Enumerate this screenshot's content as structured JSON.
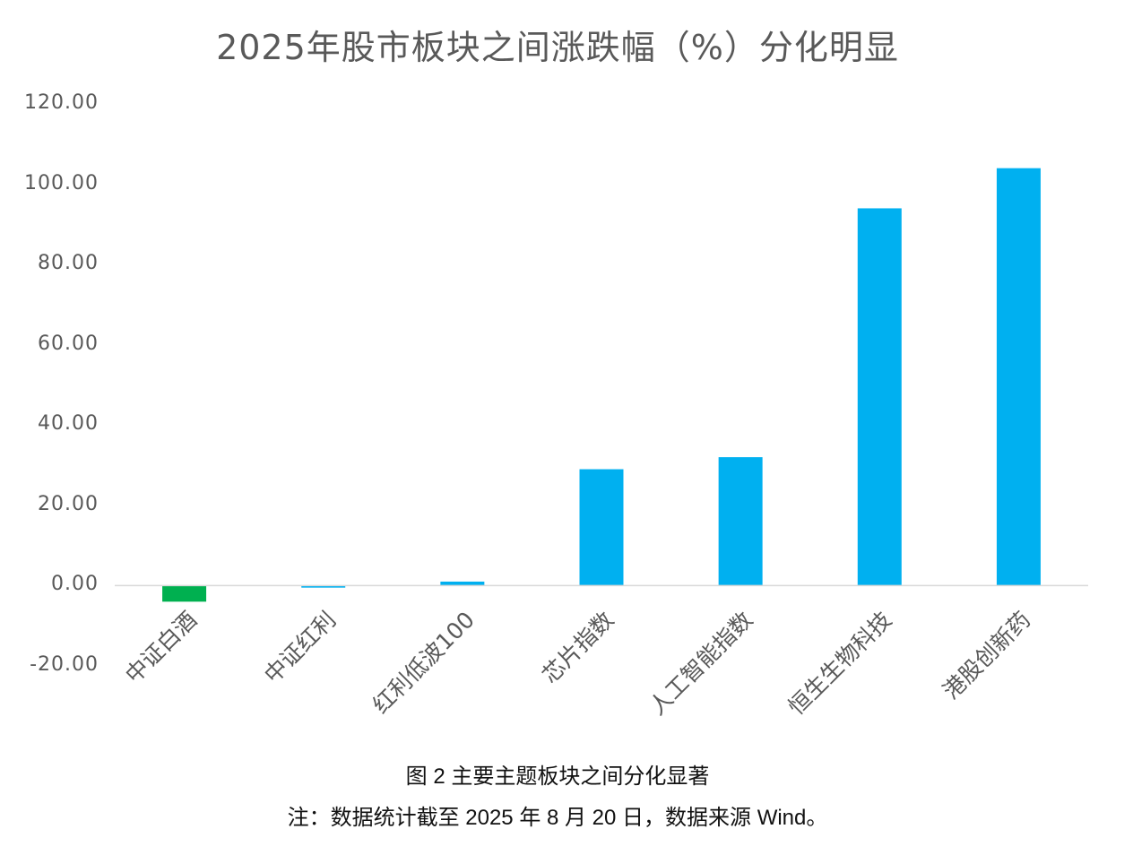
{
  "chart_data": {
    "type": "bar",
    "title": "2025年股市板块之间涨跌幅（%）分化明显",
    "categories": [
      "中证白酒",
      "中证红利",
      "红利低波100",
      "芯片指数",
      "人工智能指数",
      "恒生生物科技",
      "港股创新药"
    ],
    "values": [
      -4.0,
      -0.5,
      1.0,
      29.0,
      32.0,
      94.0,
      104.0
    ],
    "colors": [
      "#00B050",
      "#00B0F0",
      "#00B0F0",
      "#00B0F0",
      "#00B0F0",
      "#00B0F0",
      "#00B0F0"
    ],
    "yticks": [
      "120.00",
      "100.00",
      "80.00",
      "60.00",
      "40.00",
      "20.00",
      "0.00",
      "-20.00"
    ],
    "ylim": [
      -20,
      120
    ],
    "grid": false,
    "legend": "none"
  },
  "caption": {
    "figure": "图 2  主要主题板块之间分化显著",
    "note": "注：数据统计截至 2025 年 8 月 20 日，数据来源 Wind。"
  }
}
